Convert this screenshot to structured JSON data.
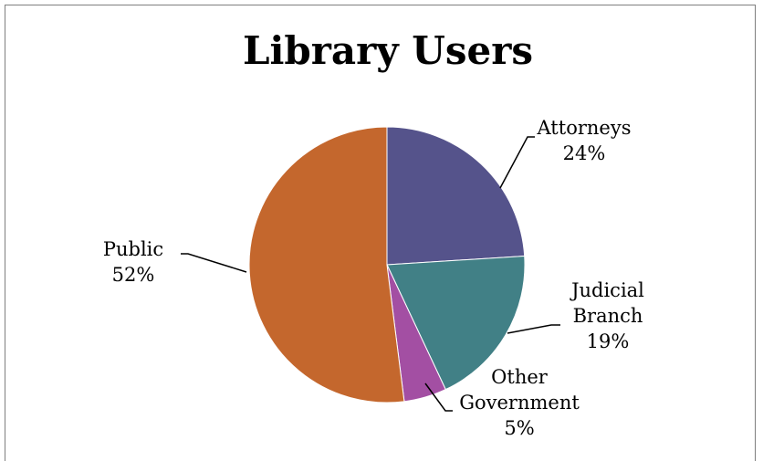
{
  "chart_data": {
    "type": "pie",
    "title": "Library Users",
    "start_angle_deg": 0,
    "direction": "clockwise",
    "legend": "none",
    "slices": [
      {
        "name": "Attorneys",
        "label_lines": [
          "Attorneys"
        ],
        "value": 24,
        "pct_label": "24%",
        "color": "#55538B"
      },
      {
        "name": "Judicial Branch",
        "label_lines": [
          "Judicial",
          "Branch"
        ],
        "value": 19,
        "pct_label": "19%",
        "color": "#418086"
      },
      {
        "name": "Other Government",
        "label_lines": [
          "Other",
          "Government"
        ],
        "value": 5,
        "pct_label": "5%",
        "color": "#A34FA3"
      },
      {
        "name": "Public",
        "label_lines": [
          "Public"
        ],
        "value": 52,
        "pct_label": "52%",
        "color": "#C4672D"
      }
    ]
  }
}
